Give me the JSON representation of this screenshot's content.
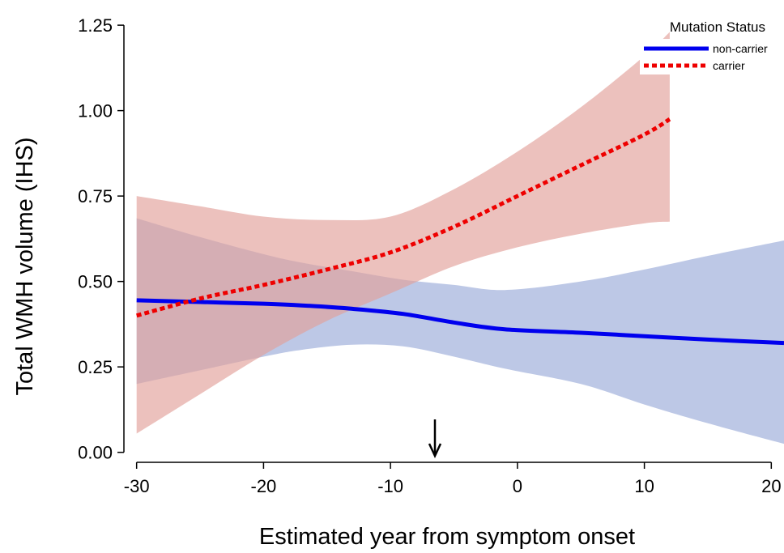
{
  "chart_data": {
    "type": "line",
    "xlabel": "Estimated year from symptom onset",
    "ylabel": "Total WMH volume (IHS)",
    "xlim": [
      -31,
      21
    ],
    "ylim": [
      -0.015,
      1.3
    ],
    "x_ticks": [
      -30,
      -20,
      -10,
      0,
      10,
      20
    ],
    "x_tick_labels": [
      "-30",
      "-20",
      "-10",
      "0",
      "10",
      "20"
    ],
    "y_ticks": [
      0,
      0.25,
      0.5,
      0.75,
      1.0,
      1.25
    ],
    "y_tick_labels": [
      "0.00",
      "0.25",
      "0.50",
      "0.75",
      "1.00",
      "1.25"
    ],
    "grid": false,
    "legend": {
      "title": "Mutation Status",
      "placement": "top-right"
    },
    "annotation": {
      "type": "arrow-down",
      "x": -6.5
    },
    "series": [
      {
        "name": "non-carrier",
        "color": "#0000ee",
        "line_style": "solid",
        "band_color": "#9aaad9",
        "x": [
          -30,
          -25,
          -20,
          -17,
          -13,
          -9,
          -5,
          -1,
          5,
          10,
          15,
          21
        ],
        "y": [
          0.445,
          0.44,
          0.435,
          0.43,
          0.42,
          0.405,
          0.38,
          0.36,
          0.35,
          0.34,
          0.33,
          0.32
        ],
        "lower": [
          0.2,
          0.24,
          0.28,
          0.3,
          0.315,
          0.31,
          0.28,
          0.245,
          0.2,
          0.14,
          0.085,
          0.025
        ],
        "upper": [
          0.685,
          0.63,
          0.58,
          0.555,
          0.53,
          0.505,
          0.49,
          0.475,
          0.5,
          0.535,
          0.575,
          0.62
        ]
      },
      {
        "name": "carrier",
        "color": "#ee0000",
        "line_style": "dotted",
        "band_color": "#e29f99",
        "x": [
          -30,
          -25,
          -20,
          -15,
          -10,
          -5,
          0,
          5,
          10,
          12
        ],
        "y": [
          0.4,
          0.45,
          0.49,
          0.535,
          0.585,
          0.66,
          0.75,
          0.84,
          0.93,
          0.975
        ],
        "lower": [
          0.055,
          0.17,
          0.285,
          0.385,
          0.465,
          0.545,
          0.6,
          0.64,
          0.67,
          0.675
        ],
        "upper": [
          0.75,
          0.72,
          0.69,
          0.68,
          0.69,
          0.77,
          0.88,
          1.01,
          1.16,
          1.23
        ]
      }
    ]
  }
}
